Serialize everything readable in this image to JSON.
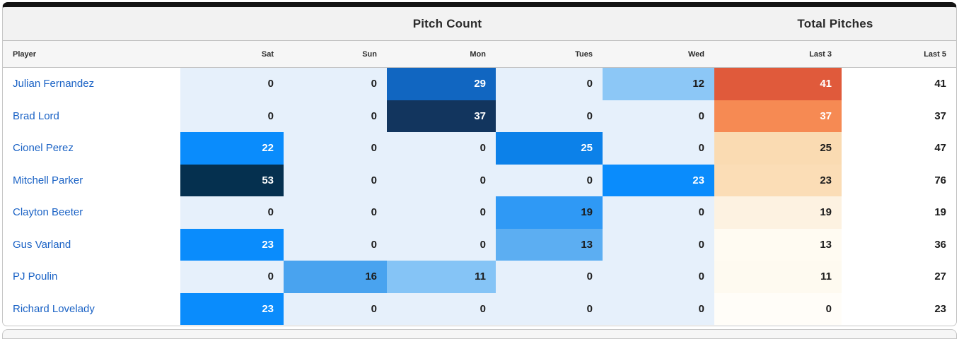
{
  "theme": {
    "player_link_blue": "#1a62c5",
    "heat_blue_bright": "#0a8cfc",
    "heat_blue_darkest": "#05304f",
    "heat_orange_strong": "#e05a3b",
    "top_bar_black": "#141414"
  },
  "table": {
    "group_headers": [
      {
        "label": "Pitch Count"
      },
      {
        "label": "Total Pitches"
      }
    ],
    "columns": [
      "Player",
      "Sat",
      "Sun",
      "Mon",
      "Tues",
      "Wed",
      "Last 3",
      "Last 5"
    ],
    "column_keys": [
      "sat",
      "sun",
      "mon",
      "tues",
      "wed",
      "last3",
      "last5"
    ],
    "rows": [
      {
        "player": "Julian Fernandez",
        "cells": [
          {
            "v": "0",
            "bg": "#e6f0fb",
            "fg": "#1c1c1c"
          },
          {
            "v": "0",
            "bg": "#e6f0fb",
            "fg": "#1c1c1c"
          },
          {
            "v": "29",
            "bg": "#1166c1",
            "fg": "#ffffff"
          },
          {
            "v": "0",
            "bg": "#e6f0fb",
            "fg": "#1c1c1c"
          },
          {
            "v": "12",
            "bg": "#8cc7f6",
            "fg": "#1c1c1c"
          },
          {
            "v": "41",
            "bg": "#e05a3b",
            "fg": "#ffffff"
          },
          {
            "v": "41",
            "bg": "#ffffff",
            "fg": "#1c1c1c"
          }
        ]
      },
      {
        "player": "Brad Lord",
        "cells": [
          {
            "v": "0",
            "bg": "#e6f0fb",
            "fg": "#1c1c1c"
          },
          {
            "v": "0",
            "bg": "#e6f0fb",
            "fg": "#1c1c1c"
          },
          {
            "v": "37",
            "bg": "#12355e",
            "fg": "#ffffff"
          },
          {
            "v": "0",
            "bg": "#e6f0fb",
            "fg": "#1c1c1c"
          },
          {
            "v": "0",
            "bg": "#e6f0fb",
            "fg": "#1c1c1c"
          },
          {
            "v": "37",
            "bg": "#f68a53",
            "fg": "#ffffff"
          },
          {
            "v": "37",
            "bg": "#ffffff",
            "fg": "#1c1c1c"
          }
        ]
      },
      {
        "player": "Cionel Perez",
        "cells": [
          {
            "v": "22",
            "bg": "#0a8cfc",
            "fg": "#ffffff"
          },
          {
            "v": "0",
            "bg": "#e6f0fb",
            "fg": "#1c1c1c"
          },
          {
            "v": "0",
            "bg": "#e6f0fb",
            "fg": "#1c1c1c"
          },
          {
            "v": "25",
            "bg": "#0c81e9",
            "fg": "#ffffff"
          },
          {
            "v": "0",
            "bg": "#e6f0fb",
            "fg": "#1c1c1c"
          },
          {
            "v": "25",
            "bg": "#fadbb2",
            "fg": "#1c1c1c"
          },
          {
            "v": "47",
            "bg": "#ffffff",
            "fg": "#1c1c1c"
          }
        ]
      },
      {
        "player": "Mitchell Parker",
        "cells": [
          {
            "v": "53",
            "bg": "#05304f",
            "fg": "#ffffff"
          },
          {
            "v": "0",
            "bg": "#e6f0fb",
            "fg": "#1c1c1c"
          },
          {
            "v": "0",
            "bg": "#e6f0fb",
            "fg": "#1c1c1c"
          },
          {
            "v": "0",
            "bg": "#e6f0fb",
            "fg": "#1c1c1c"
          },
          {
            "v": "23",
            "bg": "#0a8cfc",
            "fg": "#ffffff"
          },
          {
            "v": "23",
            "bg": "#fbddb6",
            "fg": "#1c1c1c"
          },
          {
            "v": "76",
            "bg": "#ffffff",
            "fg": "#1c1c1c"
          }
        ]
      },
      {
        "player": "Clayton Beeter",
        "cells": [
          {
            "v": "0",
            "bg": "#e6f0fb",
            "fg": "#1c1c1c"
          },
          {
            "v": "0",
            "bg": "#e6f0fb",
            "fg": "#1c1c1c"
          },
          {
            "v": "0",
            "bg": "#e6f0fb",
            "fg": "#1c1c1c"
          },
          {
            "v": "19",
            "bg": "#2f99f5",
            "fg": "#1c1c1c"
          },
          {
            "v": "0",
            "bg": "#e6f0fb",
            "fg": "#1c1c1c"
          },
          {
            "v": "19",
            "bg": "#fdf2e1",
            "fg": "#1c1c1c"
          },
          {
            "v": "19",
            "bg": "#ffffff",
            "fg": "#1c1c1c"
          }
        ]
      },
      {
        "player": "Gus Varland",
        "cells": [
          {
            "v": "23",
            "bg": "#0a8cfc",
            "fg": "#ffffff"
          },
          {
            "v": "0",
            "bg": "#e6f0fb",
            "fg": "#1c1c1c"
          },
          {
            "v": "0",
            "bg": "#e6f0fb",
            "fg": "#1c1c1c"
          },
          {
            "v": "13",
            "bg": "#5caef2",
            "fg": "#1c1c1c"
          },
          {
            "v": "0",
            "bg": "#e6f0fb",
            "fg": "#1c1c1c"
          },
          {
            "v": "13",
            "bg": "#fffbf2",
            "fg": "#1c1c1c"
          },
          {
            "v": "36",
            "bg": "#ffffff",
            "fg": "#1c1c1c"
          }
        ]
      },
      {
        "player": "PJ Poulin",
        "cells": [
          {
            "v": "0",
            "bg": "#e6f0fb",
            "fg": "#1c1c1c"
          },
          {
            "v": "16",
            "bg": "#49a3ef",
            "fg": "#1c1c1c"
          },
          {
            "v": "11",
            "bg": "#85c4f6",
            "fg": "#1c1c1c"
          },
          {
            "v": "0",
            "bg": "#e6f0fb",
            "fg": "#1c1c1c"
          },
          {
            "v": "0",
            "bg": "#e6f0fb",
            "fg": "#1c1c1c"
          },
          {
            "v": "11",
            "bg": "#fefaf0",
            "fg": "#1c1c1c"
          },
          {
            "v": "27",
            "bg": "#ffffff",
            "fg": "#1c1c1c"
          }
        ]
      },
      {
        "player": "Richard Lovelady",
        "cells": [
          {
            "v": "23",
            "bg": "#0a8cfc",
            "fg": "#ffffff"
          },
          {
            "v": "0",
            "bg": "#e6f0fb",
            "fg": "#1c1c1c"
          },
          {
            "v": "0",
            "bg": "#e6f0fb",
            "fg": "#1c1c1c"
          },
          {
            "v": "0",
            "bg": "#e6f0fb",
            "fg": "#1c1c1c"
          },
          {
            "v": "0",
            "bg": "#e6f0fb",
            "fg": "#1c1c1c"
          },
          {
            "v": "0",
            "bg": "#fffdf8",
            "fg": "#1c1c1c"
          },
          {
            "v": "23",
            "bg": "#ffffff",
            "fg": "#1c1c1c"
          }
        ]
      }
    ]
  }
}
